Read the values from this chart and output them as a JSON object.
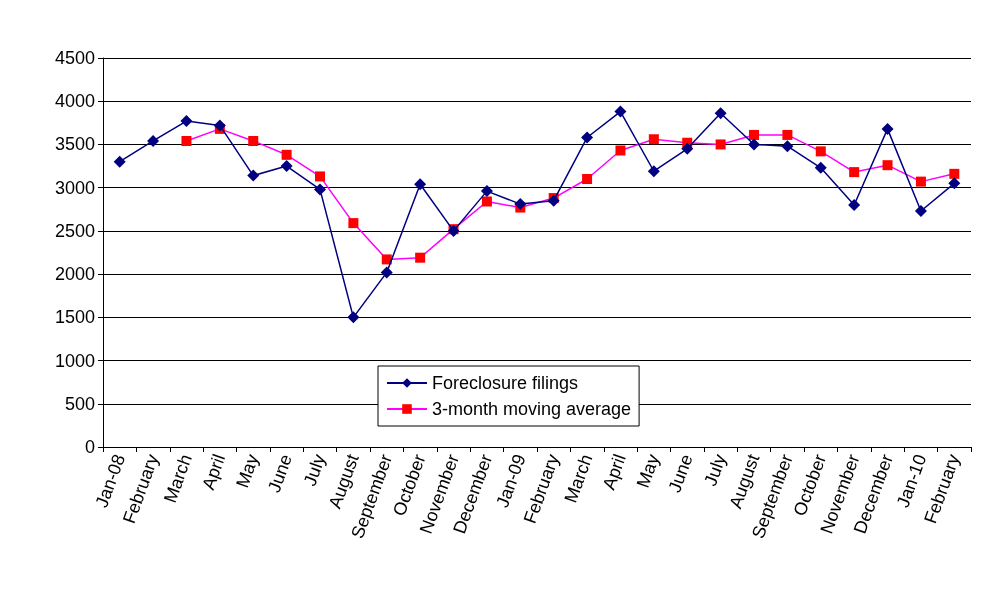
{
  "chart_data": {
    "type": "line",
    "categories": [
      "Jan-08",
      "February",
      "March",
      "April",
      "May",
      "June",
      "July",
      "August",
      "September",
      "October",
      "November",
      "December",
      "Jan-09",
      "February",
      "March",
      "April",
      "May",
      "June",
      "July",
      "August",
      "September",
      "October",
      "November",
      "December",
      "Jan-10",
      "February"
    ],
    "series": [
      {
        "name": "Foreclosure filings",
        "color": "#000080",
        "marker": "diamond",
        "values": [
          3300,
          3540,
          3770,
          3720,
          3140,
          3250,
          2980,
          1500,
          2020,
          3040,
          2500,
          2960,
          2810,
          2850,
          3580,
          3880,
          3190,
          3450,
          3860,
          3500,
          3480,
          3230,
          2800,
          3680,
          2730,
          3050
        ]
      },
      {
        "name": "3-month moving average",
        "color": "#ff00ff",
        "marker": "square",
        "values": [
          null,
          null,
          3540,
          3680,
          3540,
          3380,
          3130,
          2590,
          2170,
          2190,
          2520,
          2840,
          2770,
          2880,
          3100,
          3430,
          3560,
          3520,
          3500,
          3610,
          3610,
          3420,
          3180,
          3260,
          3070,
          3160
        ]
      }
    ],
    "ylim": [
      0,
      4500
    ],
    "yticks": [
      0,
      500,
      1000,
      1500,
      2000,
      2500,
      3000,
      3500,
      4000,
      4500
    ],
    "grid": "y",
    "legend": "bottom"
  }
}
